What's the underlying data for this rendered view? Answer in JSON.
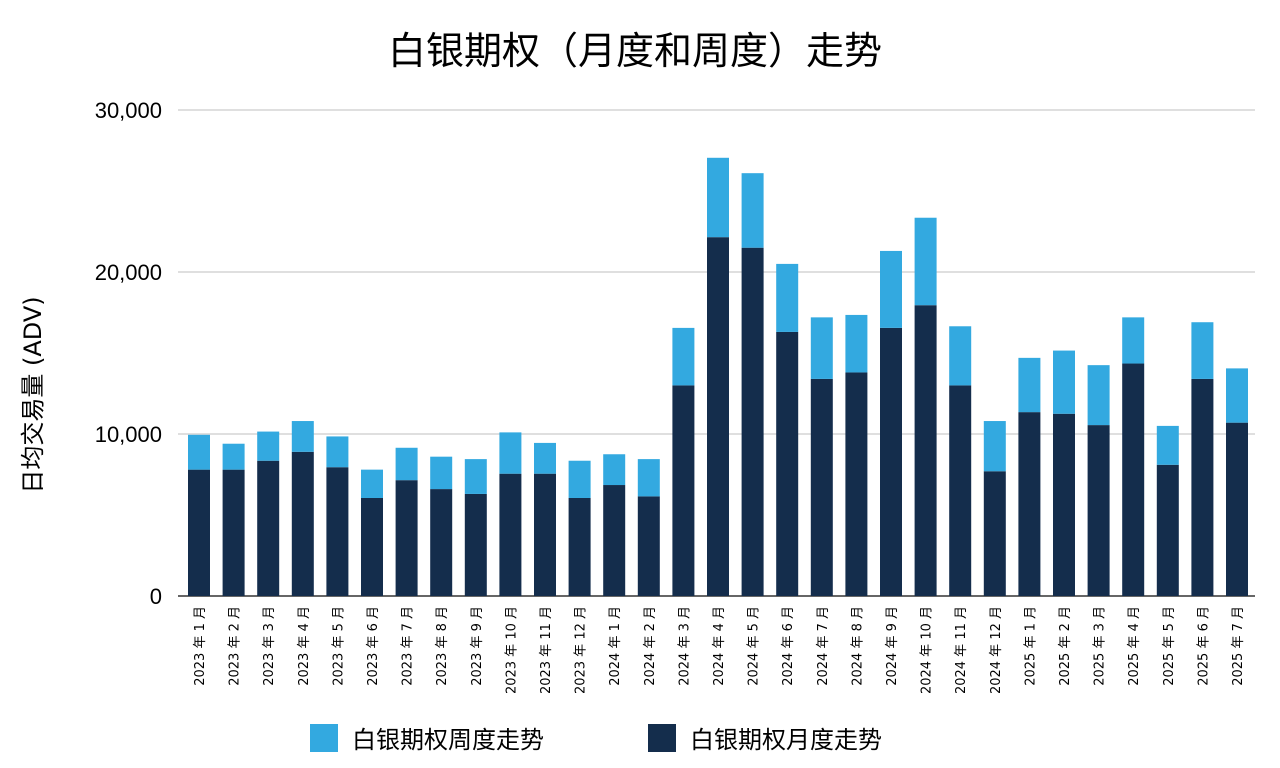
{
  "chart_data": {
    "type": "bar",
    "stacked": true,
    "title": "白银期权（月度和周度）走势",
    "ylabel": "日均交易量 (ADV)",
    "xlabel": "",
    "ylim": [
      0,
      30000
    ],
    "yticks": [
      0,
      10000,
      20000,
      30000
    ],
    "ytick_labels": [
      "0",
      "10,000",
      "20,000",
      "30,000"
    ],
    "grid": true,
    "legend_position": "bottom",
    "categories": [
      "2023 年 1 月",
      "2023 年 2 月",
      "2023 年 3 月",
      "2023 年 4 月",
      "2023 年 5 月",
      "2023 年 6 月",
      "2023 年 7 月",
      "2023 年 8 月",
      "2023 年 9 月",
      "2023 年 10 月",
      "2023 年 11 月",
      "2023 年 12 月",
      "2024 年 1 月",
      "2024 年 2 月",
      "2024 年 3 月",
      "2024 年 4 月",
      "2024 年 5 月",
      "2024 年 6 月",
      "2024 年 7 月",
      "2024 年 8 月",
      "2024 年 9 月",
      "2024 年 10 月",
      "2024 年 11 月",
      "2024 年 12 月",
      "2025 年 1 月",
      "2025 年 2 月",
      "2025 年 3 月",
      "2025 年 4 月",
      "2025 年 5 月",
      "2025 年 6 月",
      "2025 年 7 月"
    ],
    "series": [
      {
        "name": "白银期权月度走势",
        "color": "#142d4c",
        "values": [
          7800,
          7800,
          8350,
          8900,
          7950,
          6050,
          7150,
          6600,
          6300,
          7550,
          7550,
          6050,
          6850,
          6150,
          13000,
          22150,
          21500,
          16300,
          13400,
          13800,
          16550,
          17950,
          13000,
          7700,
          11350,
          11250,
          10550,
          14350,
          8100,
          13400,
          10700
        ]
      },
      {
        "name": "白银期权周度走势",
        "color": "#33a9e0",
        "values": [
          2150,
          1600,
          1800,
          1900,
          1900,
          1750,
          2000,
          2000,
          2150,
          2550,
          1900,
          2300,
          1900,
          2300,
          3550,
          4900,
          4600,
          4200,
          3800,
          3550,
          4750,
          5400,
          3650,
          3100,
          3350,
          3900,
          3700,
          2850,
          2400,
          3500,
          3350
        ]
      }
    ]
  }
}
